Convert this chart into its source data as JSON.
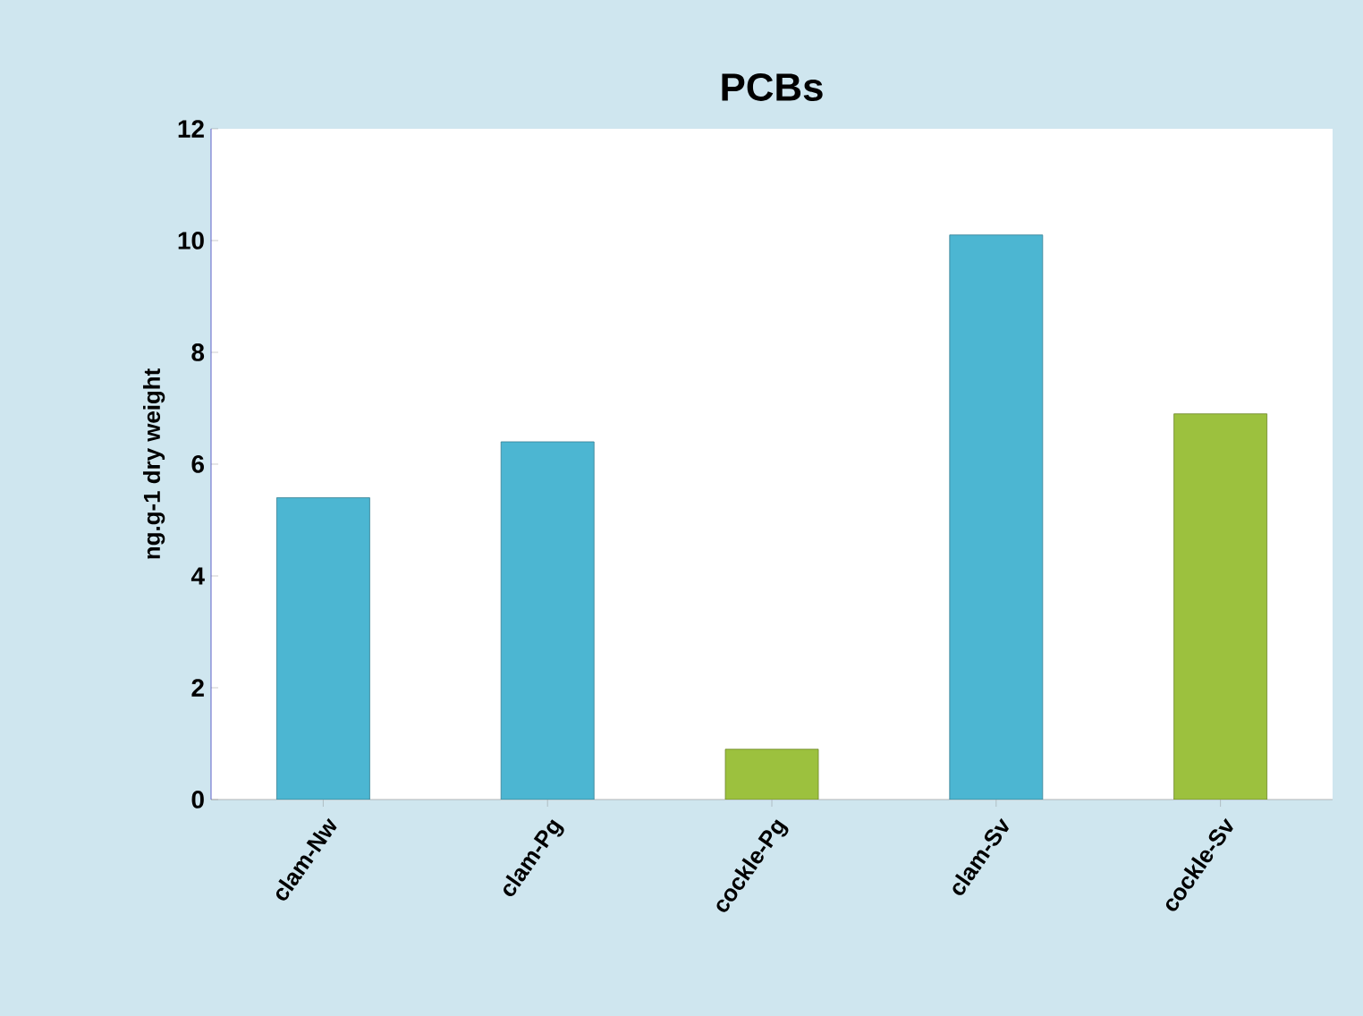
{
  "chart_data": {
    "type": "bar",
    "title": "PCBs",
    "ylabel": "ng.g-1 dry weight",
    "categories": [
      "clam-Nw",
      "clam-Pg",
      "cockle-Pg",
      "clam-Sv",
      "cockle-Sv"
    ],
    "values": [
      5.4,
      6.4,
      0.9,
      10.1,
      6.9
    ],
    "colors": [
      "#4cb6d2",
      "#4cb6d2",
      "#9cc13e",
      "#4cb6d2",
      "#9cc13e"
    ],
    "ylim": [
      0,
      12
    ],
    "yticks": [
      0,
      2,
      4,
      6,
      8,
      10,
      12
    ]
  }
}
